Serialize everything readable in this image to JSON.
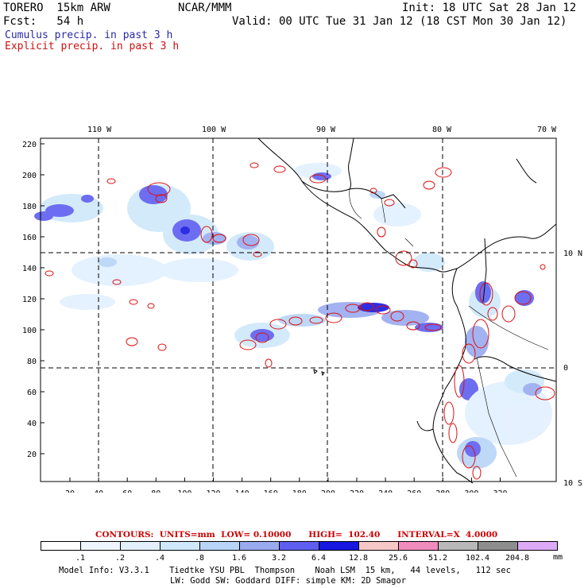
{
  "header": {
    "model": "TORERO  15km ARW",
    "org": "NCAR/MMM",
    "init": "Init: 18 UTC Sat 28 Jan 12",
    "fcst": "Fcst:   54 h",
    "valid": "Valid: 00 UTC Tue 31 Jan 12 (18 CST Mon 30 Jan 12)",
    "cumulus": "Cumulus precip. in past 3 h",
    "explicit": "Explicit precip. in past 3 h"
  },
  "map": {
    "lon_labels": [
      "110 W",
      "100 W",
      "90 W",
      "80 W",
      "70 W"
    ],
    "lat_labels": [
      "10 N",
      "0",
      "10 S"
    ],
    "x_ticks": [
      "20",
      "40",
      "60",
      "80",
      "100",
      "120",
      "140",
      "160",
      "180",
      "200",
      "220",
      "240",
      "260",
      "280",
      "300",
      "320"
    ],
    "y_ticks": [
      "220",
      "200",
      "180",
      "160",
      "140",
      "120",
      "100",
      "80",
      "60",
      "40",
      "20"
    ]
  },
  "contours_line": "CONTOURS:  UNITS=mm  LOW= 0.10000      HIGH=  102.40      INTERVAL=X  4.0000",
  "colorbar": {
    "levels": [
      ".1",
      ".2",
      ".4",
      ".8",
      "1.6",
      "3.2",
      "6.4",
      "12.8",
      "25.6",
      "51.2",
      "102.4",
      "204.8"
    ],
    "unit": "mm",
    "colors": [
      "#ffffff",
      "#f0f6ff",
      "#e2f0fe",
      "#cfe8fb",
      "#b8d4f7",
      "#9aaaf0",
      "#5e5ef0",
      "#1717e0",
      "#f7c6c6",
      "#f08bbd",
      "#b8b8b8",
      "#8e8e8e",
      "#dcaaf7"
    ]
  },
  "footer": {
    "line1": "Model Info: V3.3.1    Tiedtke YSU PBL  Thompson    Noah LSM  15 km,   44 levels,   112 sec",
    "line2": "LW: Godd SW: Goddard DIFF: simple KM: 2D Smagor"
  }
}
